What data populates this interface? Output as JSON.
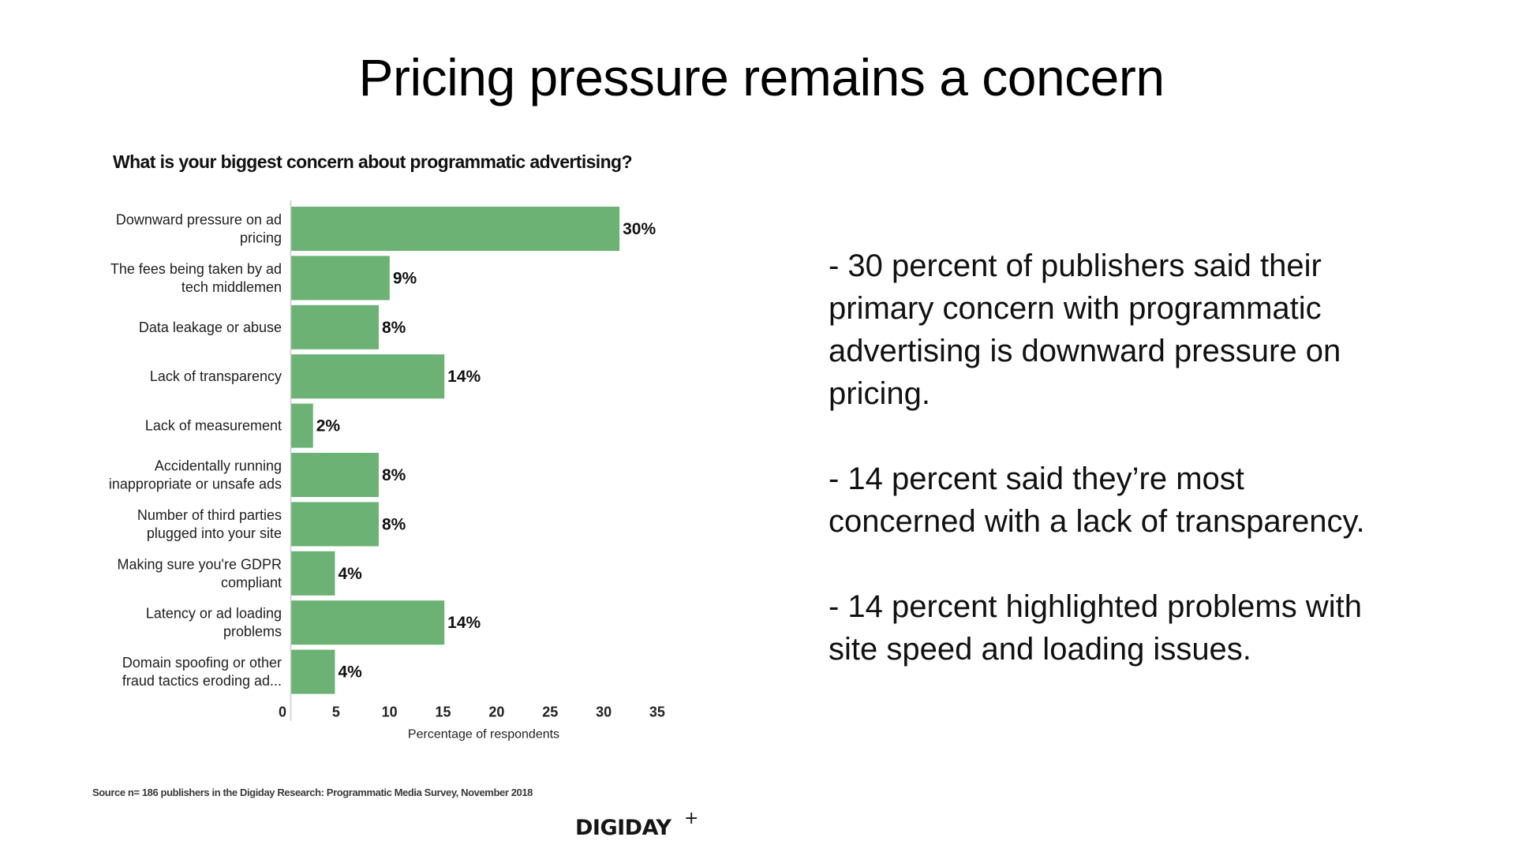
{
  "slide": {
    "title": "Pricing pressure remains a concern",
    "source": "Source n= 186 publishers in the Digiday Research: Programmatic Media Survey, November 2018",
    "logo": {
      "word": "DIGIDAY",
      "suffix": "+"
    },
    "notes": [
      {
        "lines": [
          "- 30 percent of publishers said their",
          "primary concern with programmatic",
          "advertising is downward pressure on",
          "pricing."
        ]
      },
      {
        "lines": [
          "- 14 percent said they’re most",
          "concerned with a lack of transparency."
        ]
      },
      {
        "lines": [
          "- 14 percent highlighted problems with",
          "site speed and loading issues."
        ]
      }
    ]
  },
  "colors": {
    "bar": "#6bb274",
    "axis": "#cccccc",
    "text": "#111111"
  },
  "chart_data": {
    "type": "bar",
    "orientation": "horizontal",
    "title": "What is your biggest concern about programmatic advertising?",
    "xlabel": "Percentage of respondents",
    "ylabel": "",
    "xlim": [
      0,
      35
    ],
    "ticks": [
      0,
      5,
      10,
      15,
      20,
      25,
      30,
      35
    ],
    "grid": false,
    "legend": "none",
    "value_suffix": "%",
    "categories": [
      [
        "Downward pressure on ad",
        "pricing"
      ],
      [
        "The fees being taken by ad",
        "tech middlemen"
      ],
      [
        "Data leakage or abuse"
      ],
      [
        "Lack of transparency"
      ],
      [
        "Lack of measurement"
      ],
      [
        "Accidentally running",
        "inappropriate or unsafe ads"
      ],
      [
        "Number of third parties",
        "plugged into your site"
      ],
      [
        "Making sure you're GDPR",
        "compliant"
      ],
      [
        "Latency or ad loading",
        "problems"
      ],
      [
        "Domain spoofing or other",
        "fraud tactics eroding ad..."
      ]
    ],
    "values": [
      30,
      9,
      8,
      14,
      2,
      8,
      8,
      4,
      14,
      4
    ]
  }
}
